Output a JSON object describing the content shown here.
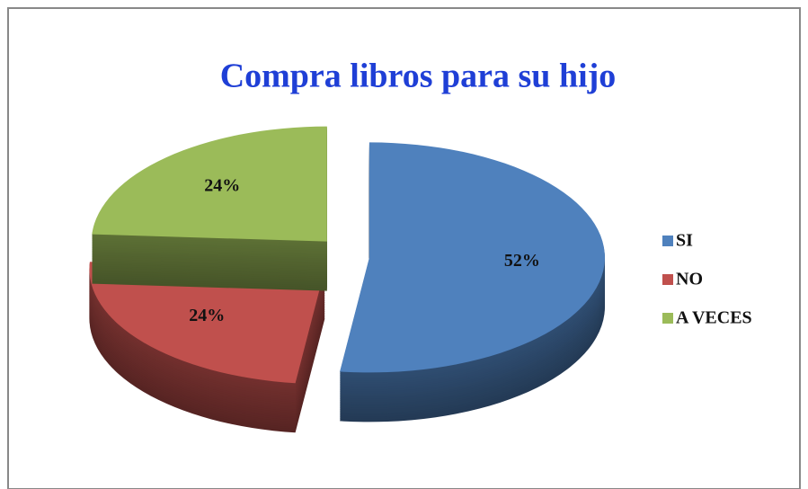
{
  "chart_data": {
    "type": "pie",
    "title": "Compra libros para su hijo",
    "categories": [
      "SI",
      "NO",
      "A VECES"
    ],
    "values": [
      52,
      24,
      24
    ],
    "value_labels": [
      "52%",
      "24%",
      "24%"
    ],
    "colors": [
      "#4f81bd",
      "#c0504d",
      "#9bbb59"
    ],
    "legend": "right"
  }
}
